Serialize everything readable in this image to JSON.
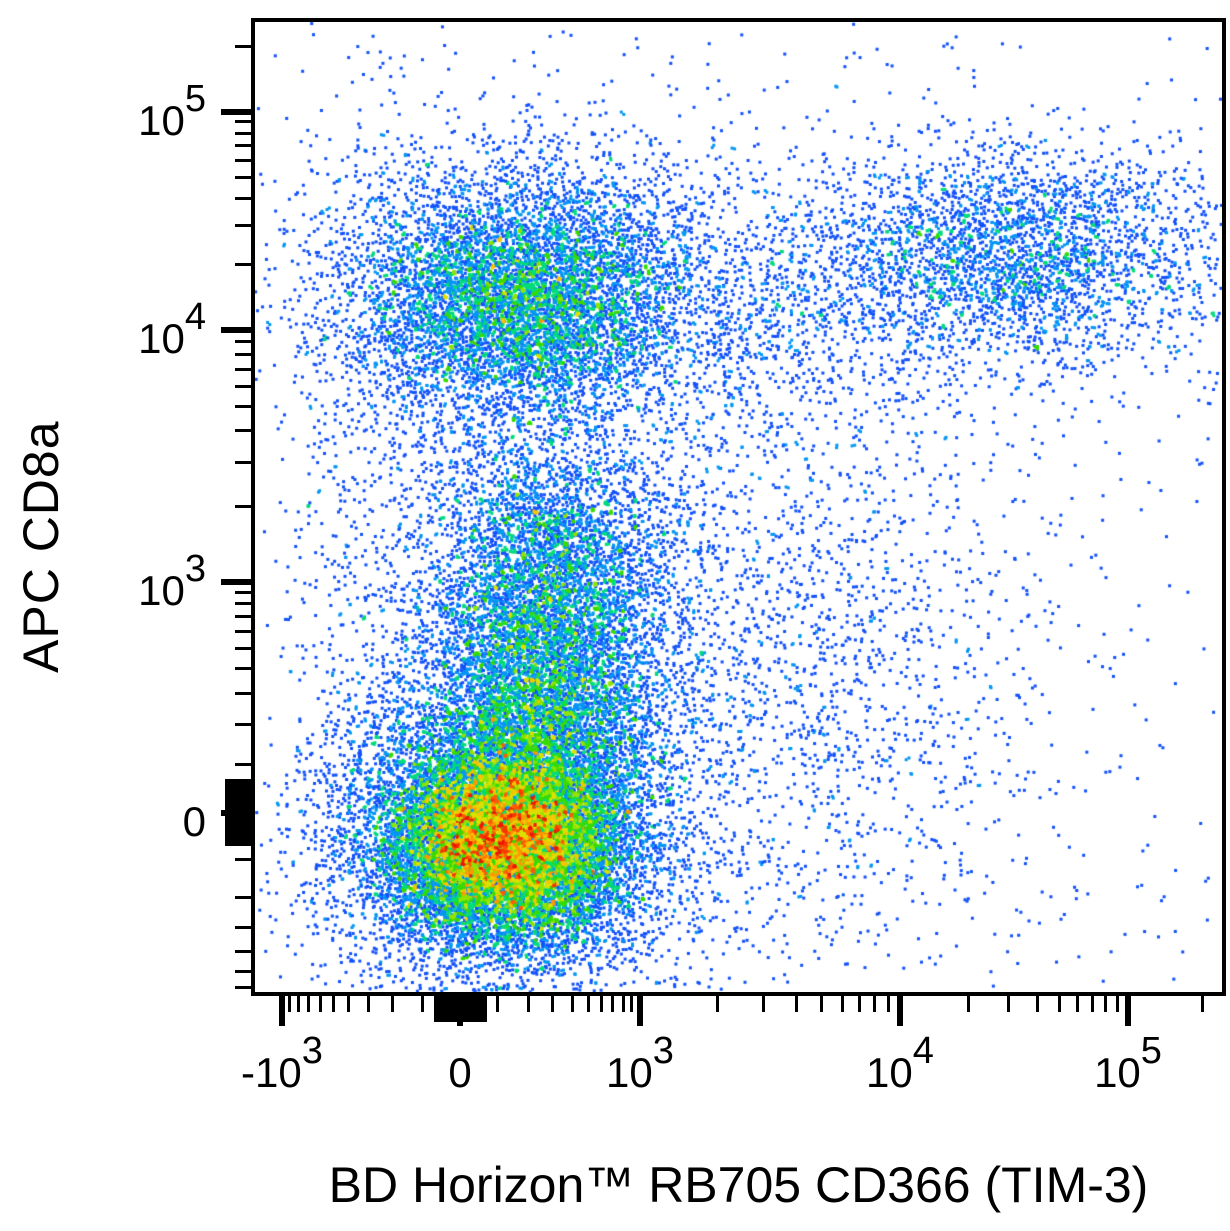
{
  "figure": {
    "background": "#ffffff",
    "frame_color": "#000000",
    "text_color": "#000000"
  },
  "chart_data": {
    "type": "scatter",
    "variant": "flow-cytometry-pseudocolor-density",
    "title": "",
    "xlabel": "BD Horizon™ RB705 CD366 (TIM-3)",
    "ylabel": "APC CD8a",
    "grid": false,
    "legend": "none",
    "x_axis": {
      "scale": "biexponential",
      "major_ticks": [
        {
          "pre": "-",
          "base": "10",
          "sup": "3",
          "value": -1000,
          "frac": 0.0279
        },
        {
          "base": "0",
          "value": 0,
          "frac": 0.212
        },
        {
          "base": "10",
          "sup": "3",
          "value": 1000,
          "frac": 0.3981
        },
        {
          "base": "10",
          "sup": "4",
          "value": 10000,
          "frac": 0.667
        },
        {
          "base": "10",
          "sup": "5",
          "value": 100000,
          "frac": 0.9028
        }
      ],
      "anchors": [
        [
          -1300,
          0.0
        ],
        [
          -1000,
          0.0279
        ],
        [
          0,
          0.212
        ],
        [
          1000,
          0.3981
        ],
        [
          10000,
          0.667
        ],
        [
          100000,
          0.9028
        ],
        [
          240000,
          1.0
        ]
      ],
      "minor_tick_values": [
        -900,
        -800,
        -700,
        -600,
        -500,
        -400,
        -300,
        -200,
        -100,
        100,
        200,
        300,
        400,
        500,
        600,
        700,
        800,
        900,
        2000,
        3000,
        4000,
        5000,
        6000,
        7000,
        8000,
        9000,
        20000,
        30000,
        40000,
        50000,
        60000,
        70000,
        80000,
        90000,
        200000
      ],
      "zero_blob": {
        "min": -70,
        "max": 70
      }
    },
    "y_axis": {
      "scale": "biexponential",
      "major_ticks": [
        {
          "base": "10",
          "sup": "5",
          "value": 100000,
          "frac": 0.0928
        },
        {
          "base": "10",
          "sup": "4",
          "value": 10000,
          "frac": 0.3175
        },
        {
          "base": "10",
          "sup": "3",
          "value": 1000,
          "frac": 0.5773
        },
        {
          "base": "0",
          "value": 0,
          "frac": 0.8155
        }
      ],
      "anchors": [
        [
          -1000,
          1.0443
        ],
        [
          0,
          0.8155
        ],
        [
          1000,
          0.5773
        ],
        [
          10000,
          0.3175
        ],
        [
          100000,
          0.0928
        ],
        [
          260000,
          0.0
        ]
      ],
      "minor_tick_values": [
        -700,
        -600,
        -500,
        -400,
        -300,
        -200,
        -100,
        100,
        200,
        300,
        400,
        500,
        600,
        700,
        800,
        900,
        2000,
        3000,
        4000,
        5000,
        6000,
        7000,
        8000,
        9000,
        20000,
        30000,
        40000,
        50000,
        60000,
        70000,
        80000,
        90000,
        200000
      ],
      "zero_blob": {
        "min": -70,
        "max": 70
      }
    },
    "colormap": [
      [
        0.0,
        "#2525EE"
      ],
      [
        0.4,
        "#0A64FF"
      ],
      [
        0.48,
        "#00C3EB"
      ],
      [
        0.56,
        "#00DC78"
      ],
      [
        0.64,
        "#2FD900"
      ],
      [
        0.72,
        "#8FE400"
      ],
      [
        0.8,
        "#EFE100"
      ],
      [
        0.87,
        "#FFAD00"
      ],
      [
        0.93,
        "#FF5500"
      ],
      [
        1.0,
        "#EC1800"
      ]
    ],
    "populations": [
      {
        "name": "tim3neg-cd8neg-core",
        "desc": "TIM-3− CD8a− main population core (red hot spot)",
        "approx": {
          "x": "~0",
          "y": "~0"
        },
        "n": 14000,
        "cx": 0.2586,
        "cy": 0.8433,
        "sx": 0.06,
        "sy": 0.0515
      },
      {
        "name": "tim3neg-cd8neg-halo",
        "desc": "halo around main population",
        "approx": {
          "x": "~0",
          "y": "~0"
        },
        "n": 5200,
        "cx": 0.2586,
        "cy": 0.8278,
        "sx": 0.0982,
        "sy": 0.0928
      },
      {
        "name": "cd8dim-column",
        "desc": "CD8a-dim column above main population",
        "approx": {
          "x": "~200",
          "y": "~300"
        },
        "n": 5200,
        "cx": 0.2999,
        "cy": 0.6763,
        "sx": 0.0641,
        "sy": 0.0742
      },
      {
        "name": "column-waist",
        "desc": "bridge between column and CD8+ cluster",
        "approx": {
          "x": "~200",
          "y": "~1500"
        },
        "n": 2600,
        "cx": 0.303,
        "cy": 0.5392,
        "sx": 0.0641,
        "sy": 0.0639
      },
      {
        "name": "cd8pos-tim3neg-core",
        "desc": "CD8a+ TIM-3− population (green/cyan core)",
        "approx": {
          "x": "~0",
          "y": "~15000"
        },
        "n": 6000,
        "cx": 0.274,
        "cy": 0.2866,
        "sx": 0.0807,
        "sy": 0.0639
      },
      {
        "name": "cd8pos-tim3neg-halo",
        "desc": "halo of CD8a+ TIM-3− population",
        "approx": {
          "x": "~0",
          "y": "~15000"
        },
        "n": 1700,
        "cx": 0.274,
        "cy": 0.2866,
        "sx": 0.1344,
        "sy": 0.0979
      },
      {
        "name": "cd8pos-tim3pos",
        "desc": "CD8a+ TIM-3+ double positive population",
        "approx": {
          "x": "~25000",
          "y": "~20000"
        },
        "n": 2400,
        "cx": 0.7911,
        "cy": 0.2371,
        "sx": 0.0982,
        "sy": 0.0515
      },
      {
        "name": "cd8pos-tim3pos-halo",
        "desc": "halo of double positive population",
        "approx": {
          "x": "~20000",
          "y": "~18000"
        },
        "n": 700,
        "cx": 0.7704,
        "cy": 0.2454,
        "sx": 0.1551,
        "sy": 0.0825
      },
      {
        "name": "upper-bridge",
        "desc": "scatter bridging the two CD8a+ clusters",
        "approx": {
          "x": "~3000",
          "y": "~15000"
        },
        "n": 1000,
        "cx": 0.5222,
        "cy": 0.2866,
        "sx": 0.1241,
        "sy": 0.067
      },
      {
        "name": "tim3pos-scatter",
        "desc": "sparse TIM-3+ CD8a− scatter",
        "approx": {
          "x": "~2000",
          "y": "~300"
        },
        "n": 2300,
        "cx": 0.5326,
        "cy": 0.6577,
        "sx": 0.1551,
        "sy": 0.1959
      },
      {
        "name": "left-tail-scatter",
        "desc": "sparse TIM-3 negative tail",
        "approx": {
          "x": "~-400",
          "y": "mixed"
        },
        "n": 650,
        "cx": 0.1169,
        "cy": 0.5546,
        "sx": 0.0496,
        "sy": 0.299
      },
      {
        "name": "uniform-sparse",
        "desc": "rare events spread across plot",
        "approx": {
          "x": "all",
          "y": "all"
        },
        "n": 520,
        "uniform": true,
        "x0": 0.03,
        "x1": 0.99,
        "y0": 0.01,
        "y1": 0.985
      }
    ],
    "render": {
      "seed": 7,
      "dot_size": 3,
      "bin_size": 3,
      "linear_width": 200,
      "max_count_cap": 11
    }
  }
}
